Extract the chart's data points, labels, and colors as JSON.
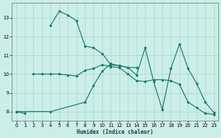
{
  "xlabel": "Humidex (Indice chaleur)",
  "bg_color": "#cceee8",
  "grid_color": "#aad8d0",
  "line_color": "#1a7a6e",
  "xlim": [
    -0.5,
    23.5
  ],
  "ylim": [
    7.5,
    13.8
  ],
  "yticks": [
    8,
    9,
    10,
    11,
    12,
    13
  ],
  "xticks": [
    0,
    1,
    2,
    3,
    4,
    5,
    6,
    7,
    8,
    9,
    10,
    11,
    12,
    13,
    14,
    15,
    16,
    17,
    18,
    19,
    20,
    21,
    22,
    23
  ],
  "series": [
    {
      "x": [
        0,
        1,
        4,
        5,
        6,
        7,
        8,
        9,
        10,
        11,
        12,
        13,
        14
      ],
      "y": [
        8.0,
        7.9,
        12.6,
        13.35,
        13.15,
        12.85,
        11.5,
        11.4,
        11.1,
        10.5,
        10.45,
        10.35,
        10.35
      ],
      "breaks": [
        [
          1,
          4
        ]
      ]
    },
    {
      "x": [
        2,
        3,
        4,
        5,
        6,
        7,
        8,
        9,
        10,
        11,
        12,
        13,
        14,
        15,
        16,
        17,
        18,
        19,
        20,
        21,
        22,
        23
      ],
      "y": [
        10.0,
        10.0,
        10.0,
        10.0,
        9.95,
        9.9,
        10.2,
        10.3,
        10.5,
        10.4,
        10.35,
        10.0,
        9.65,
        9.6,
        9.7,
        9.7,
        9.65,
        9.45,
        8.5,
        8.2,
        7.9,
        7.85
      ],
      "breaks": []
    },
    {
      "x": [
        0,
        4,
        8,
        9,
        10,
        11,
        12,
        13,
        14,
        15,
        16,
        17,
        18,
        19,
        20,
        21,
        22,
        23
      ],
      "y": [
        8.0,
        8.0,
        8.5,
        9.4,
        10.15,
        10.55,
        10.45,
        10.35,
        9.95,
        11.4,
        9.6,
        8.1,
        10.3,
        11.6,
        10.3,
        9.5,
        8.5,
        7.95
      ],
      "breaks": []
    }
  ]
}
